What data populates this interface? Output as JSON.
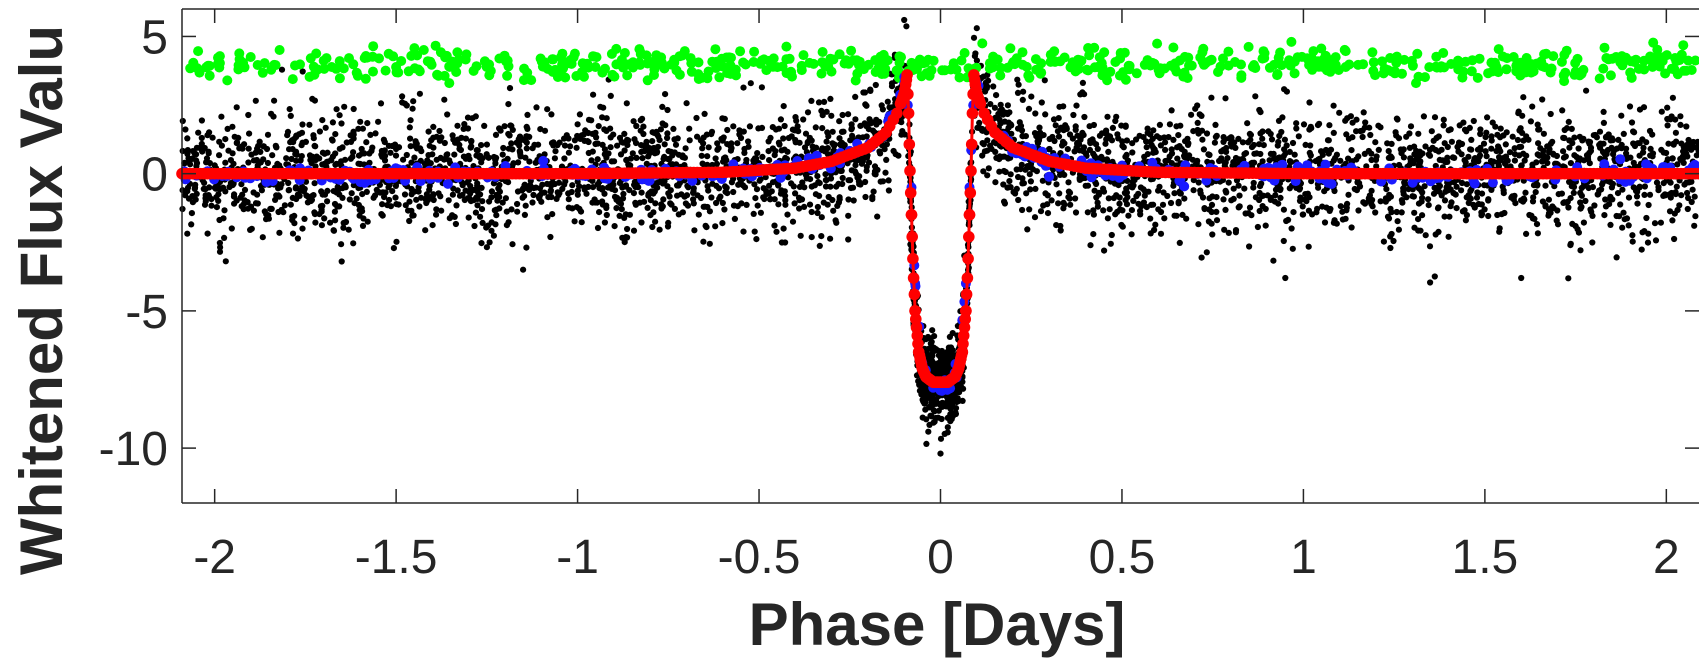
{
  "chart_data": {
    "type": "scatter",
    "title": "",
    "xlabel": "Phase [Days]",
    "ylabel": "Whitened Flux Valu",
    "xlim": [
      -2.09,
      2.09
    ],
    "ylim": [
      -12,
      6
    ],
    "xticks": [
      -2,
      -1.5,
      -1,
      -0.5,
      0,
      0.5,
      1,
      1.5,
      2
    ],
    "xtick_labels": [
      "-2",
      "-1.5",
      "-1",
      "-0.5",
      "0",
      "0.5",
      "1",
      "1.5",
      "2"
    ],
    "yticks": [
      -10,
      -5,
      0,
      5
    ],
    "ytick_labels": [
      "-10",
      "-5",
      "0",
      "5"
    ],
    "grid": false,
    "legend": "none",
    "series": [
      {
        "role": "raw whitened flux points",
        "color": "#000000",
        "style": "dense dot cloud",
        "points": [
          [
            -2.0,
            0.3
          ],
          [
            -1.9,
            -1.2
          ],
          [
            -1.8,
            1.4
          ],
          [
            -1.65,
            -3.2
          ],
          [
            -1.5,
            0.9
          ],
          [
            -1.3,
            -1.6
          ],
          [
            -1.15,
            -3.5
          ],
          [
            -1.0,
            1.8
          ],
          [
            -0.8,
            -0.7
          ],
          [
            -0.6,
            1.2
          ],
          [
            -0.4,
            0.6
          ],
          [
            -0.2,
            1.8
          ],
          [
            -0.12,
            3.0
          ],
          [
            -0.1,
            5.6
          ],
          [
            -0.05,
            -6.5
          ],
          [
            0.0,
            -10.2
          ],
          [
            0.02,
            -8.9
          ],
          [
            0.05,
            -6.8
          ],
          [
            0.1,
            5.3
          ],
          [
            0.15,
            2.4
          ],
          [
            0.3,
            0.9
          ],
          [
            0.6,
            -1.3
          ],
          [
            0.8,
            1.1
          ],
          [
            0.95,
            -3.8
          ],
          [
            1.2,
            0.5
          ],
          [
            1.4,
            -2.3
          ],
          [
            1.6,
            -3.8
          ],
          [
            1.8,
            1.4
          ],
          [
            2.05,
            -0.4
          ]
        ]
      },
      {
        "role": "binned flux",
        "color": "#1a1aff",
        "x": [
          -2.09,
          -1.75,
          -1.5,
          -1.25,
          -1.0,
          -0.75,
          -0.5,
          -0.3,
          -0.2,
          -0.15,
          -0.1,
          -0.09,
          -0.08,
          -0.07,
          -0.05,
          -0.02,
          0.0,
          0.02,
          0.05,
          0.07,
          0.08,
          0.09,
          0.1,
          0.15,
          0.2,
          0.3,
          0.5,
          0.75,
          1.0,
          1.25,
          1.5,
          1.75,
          2.09
        ],
        "y": [
          0.0,
          0.0,
          0.0,
          0.0,
          0.0,
          0.0,
          0.05,
          0.45,
          0.95,
          1.5,
          3.3,
          2.5,
          -0.5,
          -4.0,
          -7.0,
          -7.8,
          -7.9,
          -7.8,
          -7.0,
          -4.0,
          -0.5,
          2.5,
          3.3,
          1.5,
          0.95,
          0.45,
          0.05,
          0.0,
          0.0,
          0.0,
          0.0,
          0.0,
          0.0
        ]
      },
      {
        "role": "model fit",
        "color": "#ff0000",
        "x": [
          -2.09,
          -1.5,
          -1.0,
          -0.6,
          -0.4,
          -0.3,
          -0.2,
          -0.15,
          -0.12,
          -0.1,
          -0.092,
          -0.088,
          -0.085,
          -0.08,
          -0.075,
          -0.07,
          -0.06,
          -0.05,
          -0.04,
          -0.02,
          0.0,
          0.02,
          0.04,
          0.05,
          0.06,
          0.07,
          0.075,
          0.08,
          0.085,
          0.088,
          0.092,
          0.1,
          0.12,
          0.15,
          0.2,
          0.3,
          0.4,
          0.6,
          1.0,
          1.5,
          2.09
        ],
        "y": [
          0.0,
          0.0,
          0.0,
          0.05,
          0.2,
          0.45,
          0.95,
          1.5,
          2.2,
          2.9,
          3.6,
          2.2,
          0.5,
          -1.5,
          -3.5,
          -5.0,
          -6.5,
          -7.1,
          -7.4,
          -7.6,
          -7.6,
          -7.6,
          -7.4,
          -7.1,
          -6.5,
          -5.0,
          -3.5,
          -1.5,
          0.5,
          2.2,
          3.6,
          2.9,
          2.2,
          1.5,
          0.95,
          0.45,
          0.2,
          0.05,
          0.0,
          0.0,
          0.0
        ]
      },
      {
        "role": "offset residuals",
        "color": "#00ff00",
        "mean": 4.0,
        "range": [
          3.3,
          4.8
        ],
        "x_start": -2.09,
        "x_end": 2.09
      }
    ]
  }
}
